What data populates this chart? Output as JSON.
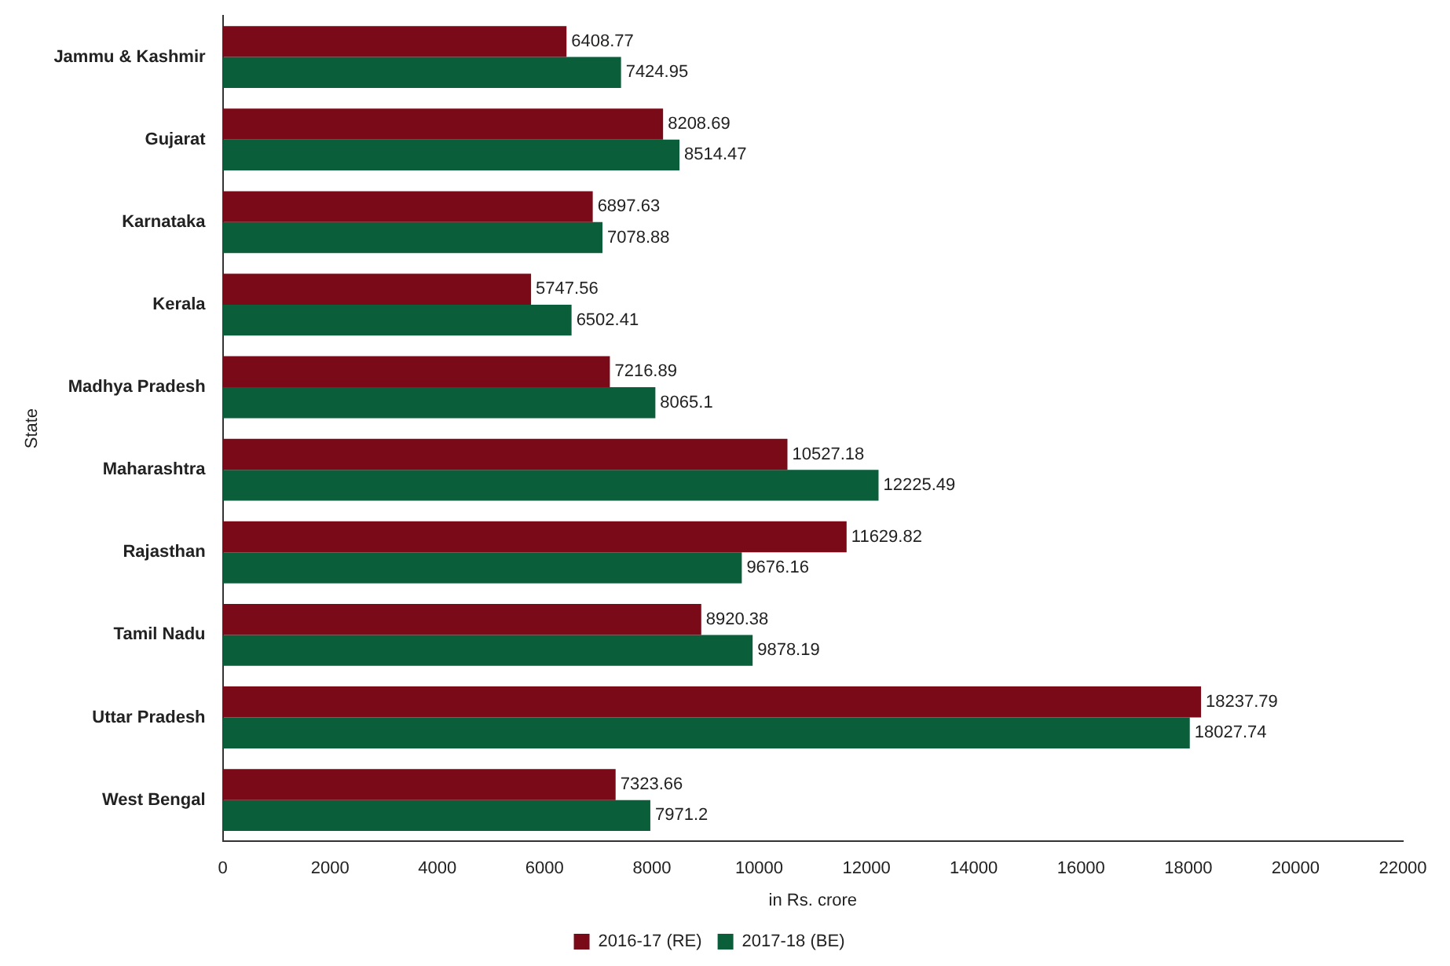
{
  "chart_data": {
    "type": "bar",
    "orientation": "horizontal",
    "ylabel": "State",
    "xlabel": "in Rs. crore",
    "categories": [
      "Jammu & Kashmir",
      "Gujarat",
      "Karnataka",
      "Kerala",
      "Madhya Pradesh",
      "Maharashtra",
      "Rajasthan",
      "Tamil Nadu",
      "Uttar Pradesh",
      "West Bengal"
    ],
    "series": [
      {
        "name": "2016-17 (RE)",
        "color": "#7a0a18",
        "values": [
          6408.77,
          8208.69,
          6897.63,
          5747.56,
          7216.89,
          10527.18,
          11629.82,
          8920.38,
          18237.79,
          7323.66
        ]
      },
      {
        "name": "2017-18 (BE)",
        "color": "#0b5e3a",
        "values": [
          7424.95,
          8514.47,
          7078.88,
          6502.41,
          8065.1,
          12225.49,
          9676.16,
          9878.19,
          18027.74,
          7971.2
        ]
      }
    ],
    "xlim": [
      0,
      22000
    ],
    "xticks": [
      0,
      2000,
      4000,
      6000,
      8000,
      10000,
      12000,
      14000,
      16000,
      18000,
      20000,
      22000
    ],
    "data_labels": true,
    "grid": false,
    "legend": "bottom"
  }
}
